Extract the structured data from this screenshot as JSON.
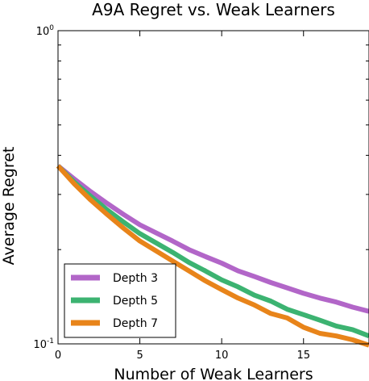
{
  "chart_data": {
    "type": "line",
    "title": "A9A Regret vs. Weak Learners",
    "xlabel": "Number of Weak Learners",
    "ylabel": "Average Regret",
    "xlim": [
      0,
      19
    ],
    "ylim": [
      0.1,
      1.0
    ],
    "yscale": "log",
    "xticks": [
      0,
      5,
      10,
      15
    ],
    "yticks": [
      {
        "value": 1.0,
        "base": "10",
        "exp": "0"
      },
      {
        "value": 0.1,
        "base": "10",
        "exp": "-1"
      }
    ],
    "grid": false,
    "legend": "bottom-left",
    "series": [
      {
        "name": "Depth 3",
        "color": "#b266c8",
        "x": [
          0,
          1,
          2,
          3,
          4,
          5,
          6,
          7,
          8,
          9,
          10,
          11,
          12,
          13,
          14,
          15,
          16,
          17,
          18,
          19
        ],
        "values": [
          0.37,
          0.336,
          0.306,
          0.281,
          0.259,
          0.24,
          0.226,
          0.213,
          0.2,
          0.19,
          0.181,
          0.171,
          0.164,
          0.157,
          0.151,
          0.145,
          0.14,
          0.136,
          0.131,
          0.127
        ]
      },
      {
        "name": "Depth 5",
        "color": "#3cb371",
        "x": [
          0,
          1,
          2,
          3,
          4,
          5,
          6,
          7,
          8,
          9,
          10,
          11,
          12,
          13,
          14,
          15,
          16,
          17,
          18,
          19
        ],
        "values": [
          0.37,
          0.328,
          0.296,
          0.268,
          0.245,
          0.225,
          0.21,
          0.196,
          0.182,
          0.171,
          0.16,
          0.152,
          0.143,
          0.137,
          0.129,
          0.124,
          0.119,
          0.114,
          0.111,
          0.106
        ]
      },
      {
        "name": "Depth 7",
        "color": "#e8841a",
        "x": [
          0,
          1,
          2,
          3,
          4,
          5,
          6,
          7,
          8,
          9,
          10,
          11,
          12,
          13,
          14,
          15,
          16,
          17,
          18,
          19
        ],
        "values": [
          0.37,
          0.324,
          0.288,
          0.259,
          0.234,
          0.213,
          0.198,
          0.184,
          0.171,
          0.159,
          0.149,
          0.14,
          0.133,
          0.125,
          0.121,
          0.113,
          0.108,
          0.106,
          0.103,
          0.099
        ]
      }
    ]
  }
}
